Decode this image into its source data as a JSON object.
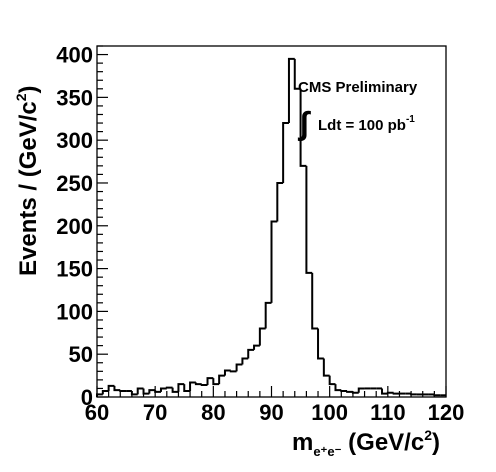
{
  "chart_data": {
    "type": "histogram",
    "xlabel": "m",
    "xlabel_sub": "e⁺e⁻",
    "xlabel_unit": " (GeV/c",
    "xlabel_unit_sup": "2",
    "xlabel_unit_close": ")",
    "ylabel": "Events / (GeV/c",
    "ylabel_sup": "2",
    "ylabel_close": ")",
    "xlim": [
      60,
      120
    ],
    "ylim": [
      0,
      410
    ],
    "x_ticks": [
      "60",
      "70",
      "80",
      "90",
      "100",
      "110",
      "120"
    ],
    "y_ticks": [
      "0",
      "50",
      "100",
      "150",
      "200",
      "250",
      "300",
      "350",
      "400"
    ],
    "annotations": {
      "experiment": "CMS Preliminary",
      "integral_symbol": "∫",
      "lumi": "Ldt = 100 pb",
      "lumi_sup": "-1"
    },
    "bin_width": 1,
    "bin_edges_start": 60,
    "values": [
      3,
      7,
      13,
      8,
      7,
      7,
      3,
      10,
      4,
      8,
      6,
      10,
      11,
      6,
      15,
      7,
      17,
      15,
      14,
      22,
      15,
      25,
      31,
      30,
      38,
      45,
      55,
      60,
      80,
      110,
      205,
      250,
      320,
      395,
      360,
      270,
      145,
      80,
      45,
      25,
      15,
      8,
      7,
      6,
      5,
      10,
      10,
      10,
      10,
      4,
      5,
      4,
      4,
      4,
      3,
      3,
      3,
      3,
      2,
      2
    ]
  }
}
